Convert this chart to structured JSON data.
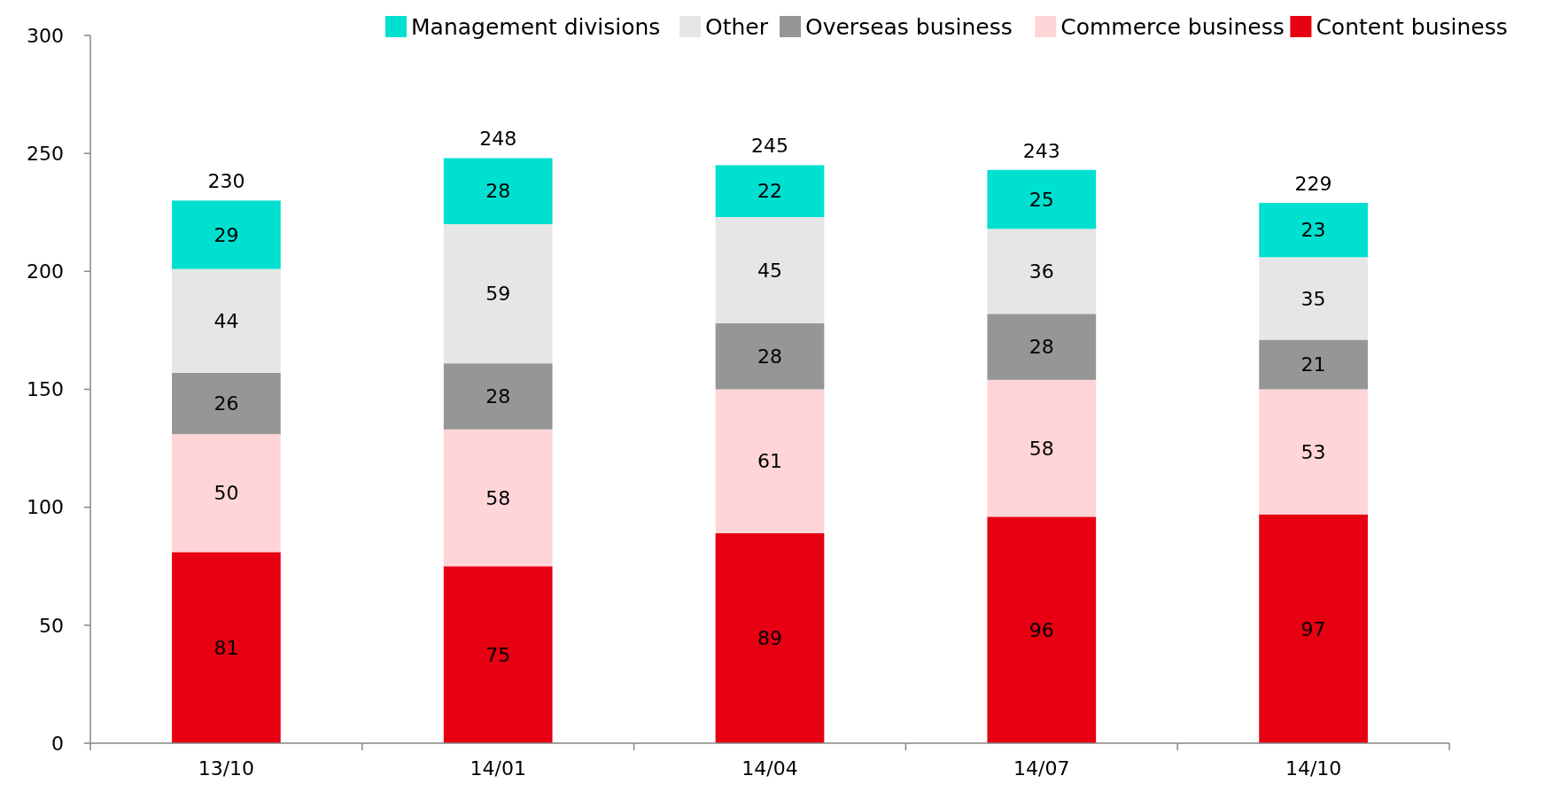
{
  "chart_data": {
    "type": "bar",
    "stacked": true,
    "categories": [
      "13/10",
      "14/01",
      "14/04",
      "14/07",
      "14/10"
    ],
    "series": [
      {
        "name": "Content business",
        "color": "#e60012",
        "values": [
          81,
          75,
          89,
          96,
          97
        ]
      },
      {
        "name": "Commerce business",
        "color": "#ffd5d8",
        "values": [
          50,
          58,
          61,
          58,
          53
        ]
      },
      {
        "name": "Overseas business",
        "color": "#969696",
        "values": [
          26,
          28,
          28,
          28,
          21
        ]
      },
      {
        "name": "Other",
        "color": "#e6e6e6",
        "values": [
          44,
          59,
          45,
          36,
          35
        ]
      },
      {
        "name": "Management divisions",
        "color": "#00e0d0",
        "values": [
          29,
          28,
          22,
          25,
          23
        ]
      }
    ],
    "ylim": [
      0,
      300
    ],
    "yticks": [
      0,
      50,
      100,
      150,
      200,
      250,
      300
    ],
    "data_labels": true,
    "totals": [
      "230",
      "248",
      "245",
      "243",
      "229"
    ],
    "legend": "top",
    "grid": false
  }
}
